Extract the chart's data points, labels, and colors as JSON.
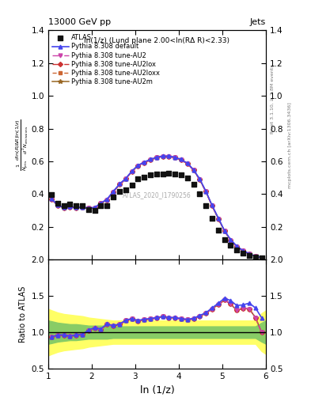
{
  "title_left": "13000 GeV pp",
  "title_right": "Jets",
  "subplot_title": "ln(1/z) (Lund plane 2.00<ln(RΔ R)<2.33)",
  "watermark": "ATLAS_2020_I1790256",
  "ylabel_main": "$\\frac{1}{N_{\\rm jets}}\\frac{d\\ln(R/\\Delta R)\\ln(1/z)}{d^2 N_{\\rm emissions}}$",
  "ylabel_ratio": "Ratio to ATLAS",
  "xlabel": "ln (1/z)",
  "right_label_top": "Rivet 3.1.10, ≥ 2.8M events",
  "right_label_bot": "mcplots.cern.ch [arXiv:1306.3436]",
  "ylim_main": [
    0.0,
    1.4
  ],
  "ylim_ratio": [
    0.5,
    2.0
  ],
  "xlim": [
    1.0,
    6.0
  ],
  "yticks_main": [
    0.2,
    0.4,
    0.6,
    0.8,
    1.0,
    1.2,
    1.4
  ],
  "yticks_ratio": [
    0.5,
    1.0,
    1.5,
    2.0
  ],
  "xticks": [
    1,
    2,
    3,
    4,
    5,
    6
  ],
  "atlas_x": [
    1.08,
    1.22,
    1.36,
    1.5,
    1.64,
    1.79,
    1.93,
    2.07,
    2.21,
    2.35,
    2.49,
    2.64,
    2.78,
    2.92,
    3.06,
    3.2,
    3.35,
    3.49,
    3.63,
    3.77,
    3.91,
    4.05,
    4.2,
    4.34,
    4.48,
    4.62,
    4.76,
    4.91,
    5.05,
    5.19,
    5.33,
    5.47,
    5.62,
    5.76,
    5.9
  ],
  "atlas_y": [
    0.395,
    0.345,
    0.33,
    0.34,
    0.33,
    0.33,
    0.305,
    0.3,
    0.33,
    0.33,
    0.38,
    0.415,
    0.425,
    0.455,
    0.495,
    0.505,
    0.515,
    0.52,
    0.52,
    0.525,
    0.52,
    0.515,
    0.5,
    0.46,
    0.4,
    0.33,
    0.25,
    0.18,
    0.12,
    0.085,
    0.06,
    0.04,
    0.025,
    0.015,
    0.01
  ],
  "default_y": [
    0.37,
    0.332,
    0.318,
    0.322,
    0.318,
    0.32,
    0.315,
    0.318,
    0.345,
    0.368,
    0.415,
    0.462,
    0.495,
    0.54,
    0.575,
    0.595,
    0.612,
    0.625,
    0.632,
    0.632,
    0.625,
    0.612,
    0.588,
    0.548,
    0.492,
    0.418,
    0.333,
    0.252,
    0.176,
    0.122,
    0.082,
    0.055,
    0.035,
    0.02,
    0.012
  ],
  "au2_y": [
    0.368,
    0.33,
    0.316,
    0.32,
    0.316,
    0.318,
    0.312,
    0.315,
    0.342,
    0.365,
    0.412,
    0.458,
    0.492,
    0.537,
    0.572,
    0.592,
    0.608,
    0.622,
    0.63,
    0.63,
    0.622,
    0.608,
    0.585,
    0.545,
    0.488,
    0.415,
    0.33,
    0.248,
    0.173,
    0.118,
    0.078,
    0.053,
    0.033,
    0.018,
    0.01
  ],
  "au2lox_y": [
    0.368,
    0.33,
    0.316,
    0.32,
    0.316,
    0.318,
    0.312,
    0.315,
    0.342,
    0.365,
    0.412,
    0.458,
    0.492,
    0.537,
    0.572,
    0.592,
    0.608,
    0.622,
    0.63,
    0.63,
    0.622,
    0.608,
    0.585,
    0.545,
    0.488,
    0.415,
    0.33,
    0.248,
    0.173,
    0.118,
    0.078,
    0.053,
    0.033,
    0.018,
    0.01
  ],
  "au2loxx_y": [
    0.368,
    0.33,
    0.316,
    0.32,
    0.316,
    0.318,
    0.312,
    0.315,
    0.342,
    0.365,
    0.412,
    0.458,
    0.492,
    0.537,
    0.572,
    0.592,
    0.608,
    0.622,
    0.63,
    0.63,
    0.622,
    0.608,
    0.585,
    0.545,
    0.488,
    0.415,
    0.33,
    0.248,
    0.173,
    0.118,
    0.078,
    0.053,
    0.033,
    0.018,
    0.01
  ],
  "au2m_y": [
    0.368,
    0.33,
    0.316,
    0.32,
    0.316,
    0.318,
    0.312,
    0.315,
    0.342,
    0.365,
    0.412,
    0.458,
    0.492,
    0.537,
    0.572,
    0.592,
    0.608,
    0.622,
    0.63,
    0.63,
    0.622,
    0.608,
    0.585,
    0.545,
    0.488,
    0.415,
    0.33,
    0.248,
    0.173,
    0.118,
    0.078,
    0.053,
    0.033,
    0.018,
    0.01
  ],
  "ratio_default": [
    0.937,
    0.961,
    0.964,
    0.947,
    0.964,
    0.97,
    1.033,
    1.06,
    1.045,
    1.115,
    1.092,
    1.113,
    1.165,
    1.187,
    1.162,
    1.178,
    1.188,
    1.202,
    1.215,
    1.204,
    1.202,
    1.189,
    1.176,
    1.191,
    1.23,
    1.267,
    1.332,
    1.4,
    1.467,
    1.435,
    1.367,
    1.375,
    1.4,
    1.333,
    1.2
  ],
  "ratio_au2": [
    0.931,
    0.957,
    0.958,
    0.941,
    0.958,
    0.964,
    1.023,
    1.05,
    1.036,
    1.106,
    1.084,
    1.103,
    1.158,
    1.18,
    1.156,
    1.172,
    1.181,
    1.196,
    1.212,
    1.2,
    1.196,
    1.181,
    1.17,
    1.185,
    1.22,
    1.258,
    1.32,
    1.378,
    1.442,
    1.388,
    1.3,
    1.325,
    1.32,
    1.2,
    1.0
  ],
  "ratio_au2lox": [
    0.931,
    0.957,
    0.958,
    0.941,
    0.958,
    0.964,
    1.023,
    1.05,
    1.036,
    1.106,
    1.084,
    1.103,
    1.158,
    1.18,
    1.156,
    1.172,
    1.181,
    1.196,
    1.212,
    1.2,
    1.196,
    1.181,
    1.17,
    1.185,
    1.22,
    1.258,
    1.32,
    1.378,
    1.442,
    1.388,
    1.3,
    1.325,
    1.32,
    1.2,
    1.0
  ],
  "ratio_au2loxx": [
    0.931,
    0.957,
    0.958,
    0.941,
    0.958,
    0.964,
    1.023,
    1.05,
    1.036,
    1.106,
    1.084,
    1.103,
    1.158,
    1.18,
    1.156,
    1.172,
    1.181,
    1.196,
    1.212,
    1.2,
    1.196,
    1.181,
    1.17,
    1.185,
    1.22,
    1.258,
    1.32,
    1.378,
    1.442,
    1.388,
    1.3,
    1.325,
    1.32,
    1.2,
    1.0
  ],
  "ratio_au2m": [
    0.931,
    0.957,
    0.958,
    0.941,
    0.958,
    0.964,
    1.023,
    1.05,
    1.036,
    1.106,
    1.084,
    1.103,
    1.158,
    1.18,
    1.156,
    1.172,
    1.181,
    1.196,
    1.212,
    1.2,
    1.196,
    1.181,
    1.17,
    1.185,
    1.22,
    1.258,
    1.32,
    1.378,
    1.442,
    1.388,
    1.3,
    1.325,
    1.32,
    1.2,
    1.0
  ],
  "band_x": [
    1.0,
    1.08,
    1.22,
    1.36,
    1.5,
    1.64,
    1.79,
    1.93,
    2.07,
    2.21,
    2.35,
    2.49,
    2.64,
    2.78,
    2.92,
    3.06,
    3.2,
    3.35,
    3.49,
    3.63,
    3.77,
    3.91,
    4.05,
    4.2,
    4.34,
    4.48,
    4.62,
    4.76,
    4.91,
    5.05,
    5.19,
    5.33,
    5.47,
    5.62,
    5.76,
    5.9,
    6.0
  ],
  "band_yellow_lo": [
    0.68,
    0.7,
    0.73,
    0.75,
    0.76,
    0.77,
    0.78,
    0.8,
    0.81,
    0.82,
    0.83,
    0.84,
    0.84,
    0.84,
    0.84,
    0.84,
    0.84,
    0.84,
    0.84,
    0.84,
    0.84,
    0.84,
    0.84,
    0.84,
    0.84,
    0.84,
    0.84,
    0.84,
    0.84,
    0.84,
    0.84,
    0.84,
    0.84,
    0.84,
    0.84,
    0.74,
    0.7
  ],
  "band_yellow_hi": [
    1.32,
    1.3,
    1.27,
    1.25,
    1.24,
    1.23,
    1.22,
    1.2,
    1.19,
    1.18,
    1.17,
    1.16,
    1.16,
    1.16,
    1.16,
    1.16,
    1.16,
    1.16,
    1.16,
    1.16,
    1.16,
    1.16,
    1.16,
    1.16,
    1.16,
    1.16,
    1.16,
    1.16,
    1.16,
    1.16,
    1.16,
    1.16,
    1.16,
    1.16,
    1.16,
    1.26,
    1.3
  ],
  "band_green_lo": [
    0.84,
    0.85,
    0.87,
    0.88,
    0.89,
    0.89,
    0.9,
    0.91,
    0.91,
    0.91,
    0.91,
    0.92,
    0.92,
    0.92,
    0.92,
    0.92,
    0.92,
    0.92,
    0.92,
    0.92,
    0.92,
    0.92,
    0.92,
    0.92,
    0.92,
    0.92,
    0.92,
    0.92,
    0.92,
    0.92,
    0.92,
    0.92,
    0.92,
    0.92,
    0.92,
    0.87,
    0.84
  ],
  "band_green_hi": [
    1.16,
    1.15,
    1.13,
    1.12,
    1.11,
    1.11,
    1.1,
    1.09,
    1.09,
    1.09,
    1.09,
    1.08,
    1.08,
    1.08,
    1.08,
    1.08,
    1.08,
    1.08,
    1.08,
    1.08,
    1.08,
    1.08,
    1.08,
    1.08,
    1.08,
    1.08,
    1.08,
    1.08,
    1.08,
    1.08,
    1.08,
    1.08,
    1.08,
    1.08,
    1.08,
    1.13,
    1.16
  ],
  "color_default": "#4444ee",
  "color_au2": "#cc44aa",
  "color_au2lox": "#cc3333",
  "color_au2loxx": "#cc6633",
  "color_au2m": "#996622",
  "color_atlas": "#111111"
}
